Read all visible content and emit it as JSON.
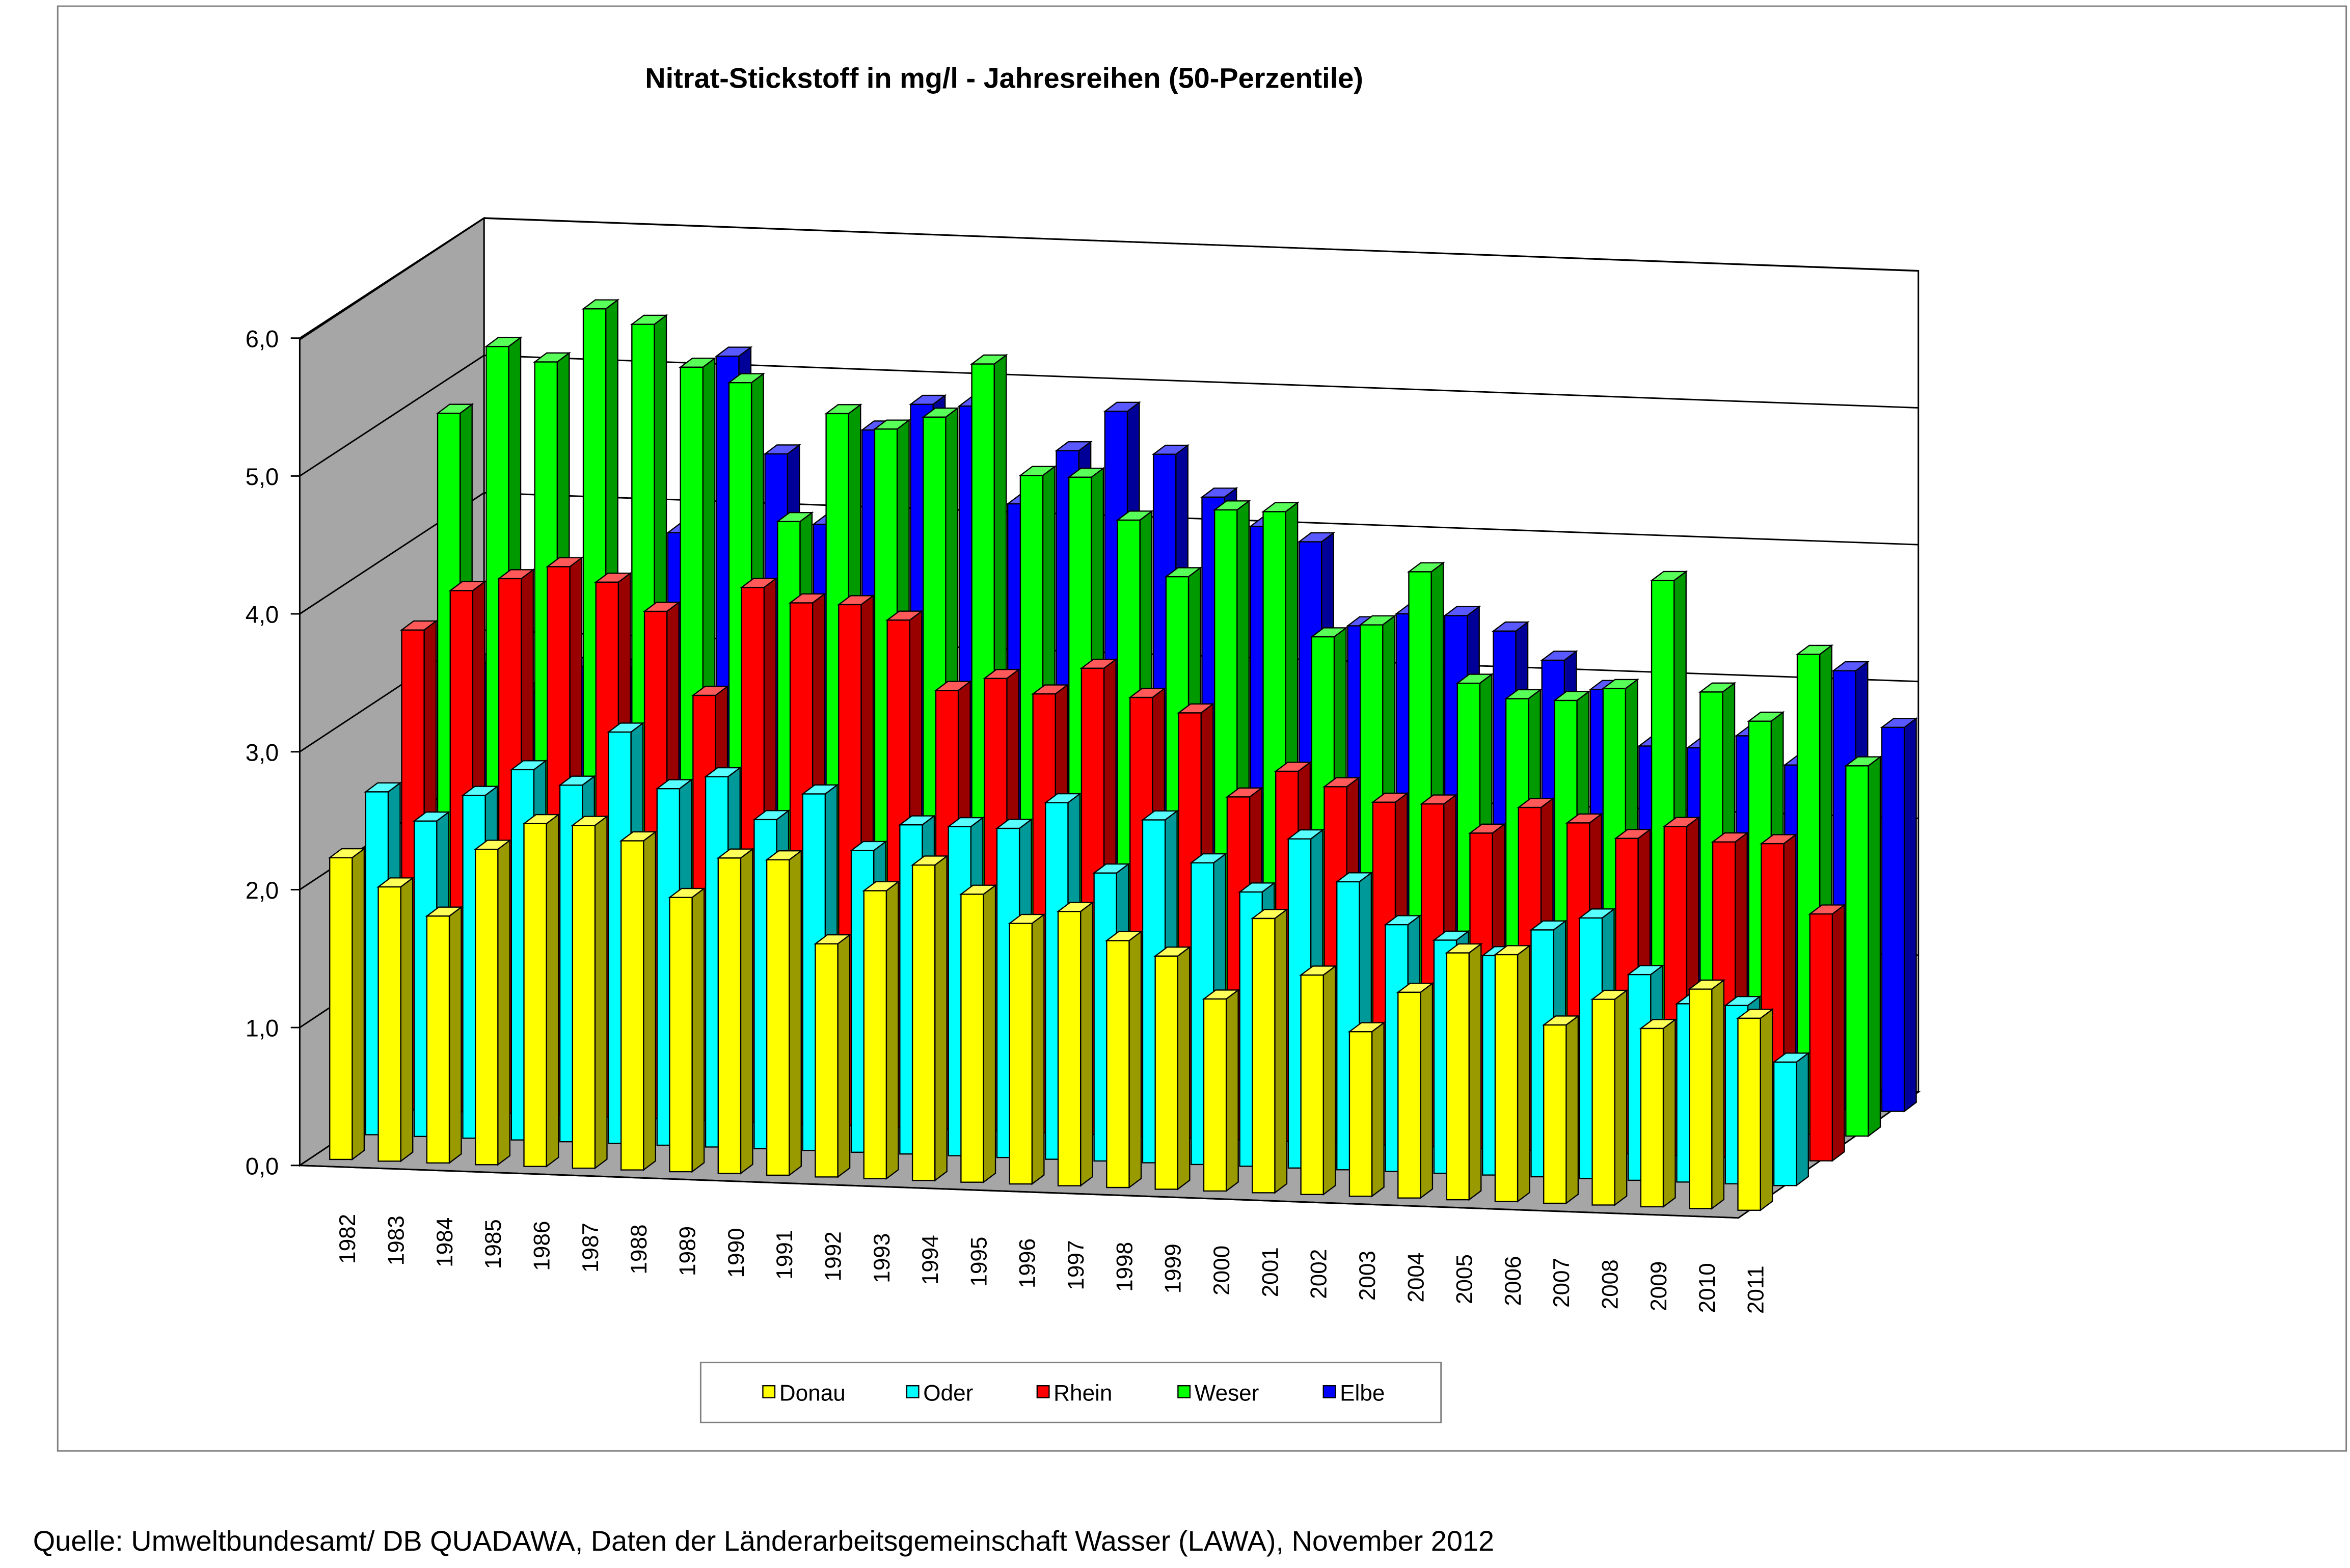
{
  "chart_data": {
    "type": "bar",
    "subtype": "3d-clustered-depth",
    "title": "Nitrat-Stickstoff in mg/l - Jahresreihen (50-Perzentile)",
    "xlabel": "",
    "ylabel": "",
    "ylim": [
      0,
      6
    ],
    "yticks": [
      "0,0",
      "1,0",
      "2,0",
      "3,0",
      "4,0",
      "5,0",
      "6,0"
    ],
    "grid": true,
    "legend_position": "bottom",
    "categories": [
      "1982",
      "1983",
      "1984",
      "1985",
      "1986",
      "1987",
      "1988",
      "1989",
      "1990",
      "1991",
      "1992",
      "1993",
      "1994",
      "1995",
      "1996",
      "1997",
      "1998",
      "1999",
      "2000",
      "2001",
      "2002",
      "2003",
      "2004",
      "2005",
      "2006",
      "2007",
      "2008",
      "2009",
      "2010",
      "2011"
    ],
    "series": [
      {
        "name": "Donau",
        "color": "#ffff00",
        "values": [
          2.2,
          2.0,
          1.8,
          2.3,
          2.5,
          2.5,
          2.4,
          2.0,
          2.3,
          2.3,
          1.7,
          2.1,
          2.3,
          2.1,
          1.9,
          2.0,
          1.8,
          1.7,
          1.4,
          2.0,
          1.6,
          1.2,
          1.5,
          1.8,
          1.8,
          1.3,
          1.5,
          1.3,
          1.6,
          1.4
        ]
      },
      {
        "name": "Oder",
        "color": "#00ffff",
        "values": [
          2.5,
          2.3,
          2.5,
          2.7,
          2.6,
          3.0,
          2.6,
          2.7,
          2.4,
          2.6,
          2.2,
          2.4,
          2.4,
          2.4,
          2.6,
          2.1,
          2.5,
          2.2,
          2.0,
          2.4,
          2.1,
          1.8,
          1.7,
          1.6,
          1.8,
          1.9,
          1.5,
          1.3,
          1.3,
          0.9
        ]
      },
      {
        "name": "Rhein",
        "color": "#ff0000",
        "values": [
          3.5,
          3.8,
          3.9,
          4.0,
          3.9,
          3.7,
          3.1,
          3.9,
          3.8,
          3.8,
          3.7,
          3.2,
          3.3,
          3.2,
          3.4,
          3.2,
          3.1,
          2.5,
          2.7,
          2.6,
          2.5,
          2.5,
          2.3,
          2.5,
          2.4,
          2.3,
          2.4,
          2.3,
          2.3,
          1.8
        ]
      },
      {
        "name": "Weser",
        "color": "#00ff00",
        "values": [
          4.9,
          5.4,
          5.3,
          5.7,
          5.6,
          5.3,
          5.2,
          4.2,
          5.0,
          4.9,
          5.0,
          5.4,
          4.6,
          4.6,
          4.3,
          3.9,
          4.4,
          4.4,
          3.5,
          3.6,
          4.0,
          3.2,
          3.1,
          3.1,
          3.2,
          4.0,
          3.2,
          3.0,
          3.5,
          2.7
        ]
      },
      {
        "name": "Elbe",
        "color": "#0000ff",
        "values": [
          2.9,
          2.7,
          2.9,
          2.9,
          3.9,
          5.2,
          4.5,
          4.0,
          4.7,
          4.9,
          4.9,
          4.2,
          4.6,
          4.9,
          4.6,
          4.3,
          4.1,
          4.0,
          3.4,
          3.5,
          3.5,
          3.4,
          3.2,
          3.0,
          2.6,
          2.6,
          2.7,
          2.5,
          3.2,
          2.8
        ]
      }
    ]
  },
  "source": "Quelle: Umweltbundesamt/ DB QUADAWA, Daten der Länderarbeitsgemeinschaft Wasser (LAWA), November 2012"
}
